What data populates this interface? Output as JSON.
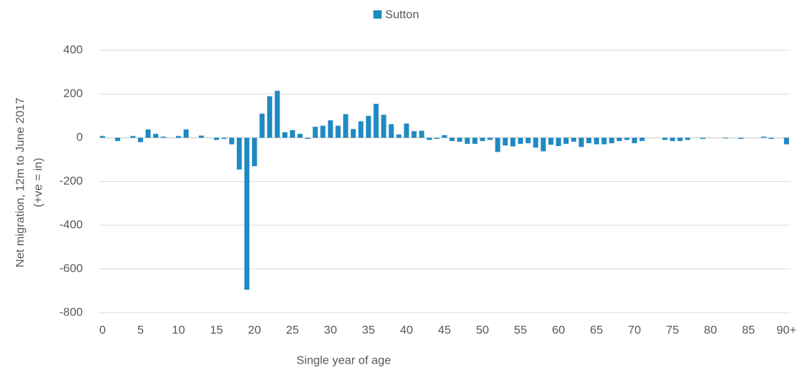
{
  "chart_data": {
    "type": "bar",
    "legend_position": "top",
    "xlabel": "Single year of age",
    "ylabel": [
      "Net migration, 12m to June 2017",
      "(+ve = in)"
    ],
    "categories": [
      "0",
      null,
      null,
      null,
      null,
      "5",
      null,
      null,
      null,
      null,
      "10",
      null,
      null,
      null,
      null,
      "15",
      null,
      null,
      null,
      null,
      "20",
      null,
      null,
      null,
      null,
      "25",
      null,
      null,
      null,
      null,
      "30",
      null,
      null,
      null,
      null,
      "35",
      null,
      null,
      null,
      null,
      "40",
      null,
      null,
      null,
      null,
      "45",
      null,
      null,
      null,
      null,
      "50",
      null,
      null,
      null,
      null,
      "55",
      null,
      null,
      null,
      null,
      "60",
      null,
      null,
      null,
      null,
      "65",
      null,
      null,
      null,
      null,
      "70",
      null,
      null,
      null,
      null,
      "75",
      null,
      null,
      null,
      null,
      "80",
      null,
      null,
      null,
      null,
      "85",
      null,
      null,
      null,
      null,
      "90+"
    ],
    "series": [
      {
        "name": "Sutton",
        "color": "#1f8ac2",
        "values": [
          8,
          0,
          -15,
          0,
          8,
          -20,
          38,
          18,
          5,
          0,
          8,
          38,
          0,
          10,
          0,
          -10,
          -5,
          -30,
          -145,
          -695,
          -130,
          110,
          190,
          215,
          25,
          35,
          18,
          -5,
          50,
          55,
          80,
          55,
          108,
          40,
          75,
          100,
          155,
          105,
          62,
          15,
          65,
          30,
          32,
          -10,
          -5,
          12,
          -15,
          -18,
          -28,
          -28,
          -15,
          -10,
          -65,
          -35,
          -40,
          -28,
          -25,
          -45,
          -62,
          -32,
          -38,
          -28,
          -18,
          -42,
          -25,
          -30,
          -30,
          -25,
          -15,
          -10,
          -25,
          -15,
          0,
          0,
          -10,
          -15,
          -15,
          -10,
          0,
          -5,
          0,
          0,
          -3,
          0,
          -5,
          0,
          0,
          5,
          -5,
          0,
          -30
        ]
      }
    ],
    "ylim": [
      -800,
      400
    ],
    "yticks": [
      -800,
      -600,
      -400,
      -200,
      0,
      200,
      400
    ],
    "grid": true
  }
}
